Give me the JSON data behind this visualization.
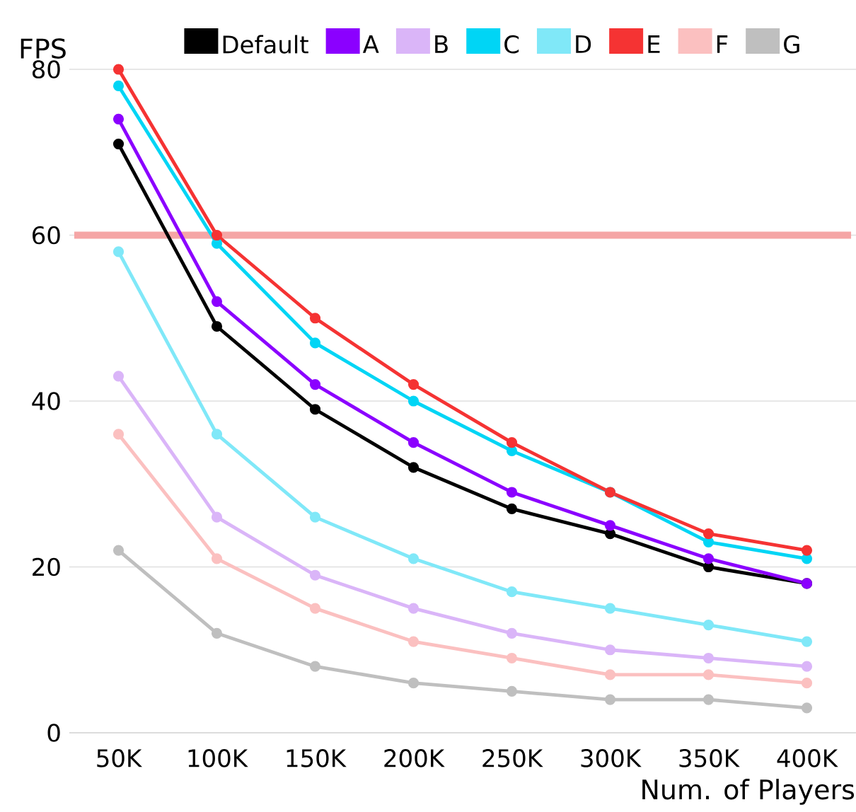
{
  "chart_data": {
    "type": "line",
    "ylabel": "FPS",
    "xlabel": "Num. of Players",
    "categories": [
      "50K",
      "100K",
      "150K",
      "200K",
      "250K",
      "300K",
      "350K",
      "400K"
    ],
    "ylim": [
      0,
      80
    ],
    "yticks": [
      0,
      20,
      40,
      60,
      80
    ],
    "grid": "y",
    "legend": "top",
    "marker": "circle",
    "line_style": "solid",
    "series": [
      {
        "name": "Default",
        "color": "#000000",
        "values": [
          71,
          49,
          39,
          32,
          27,
          24,
          20,
          18
        ]
      },
      {
        "name": "A",
        "color": "#8b00ff",
        "values": [
          74,
          52,
          42,
          35,
          29,
          25,
          21,
          18
        ]
      },
      {
        "name": "B",
        "color": "#dab5f8",
        "values": [
          43,
          26,
          19,
          15,
          12,
          10,
          9,
          8
        ]
      },
      {
        "name": "C",
        "color": "#00d5f5",
        "values": [
          78,
          59,
          47,
          40,
          34,
          29,
          23,
          21
        ]
      },
      {
        "name": "D",
        "color": "#80e8f8",
        "values": [
          58,
          36,
          26,
          21,
          17,
          15,
          13,
          11
        ]
      },
      {
        "name": "E",
        "color": "#f53333",
        "values": [
          80,
          60,
          50,
          42,
          35,
          29,
          24,
          22
        ]
      },
      {
        "name": "F",
        "color": "#fbc0c0",
        "values": [
          36,
          21,
          15,
          11,
          9,
          7,
          7,
          6
        ]
      },
      {
        "name": "G",
        "color": "#bfbfbf",
        "values": [
          22,
          12,
          8,
          6,
          5,
          4,
          4,
          3
        ]
      }
    ],
    "ref_lines": [
      {
        "axis": "y",
        "value": 60,
        "color": "#f5a6a6"
      }
    ]
  }
}
